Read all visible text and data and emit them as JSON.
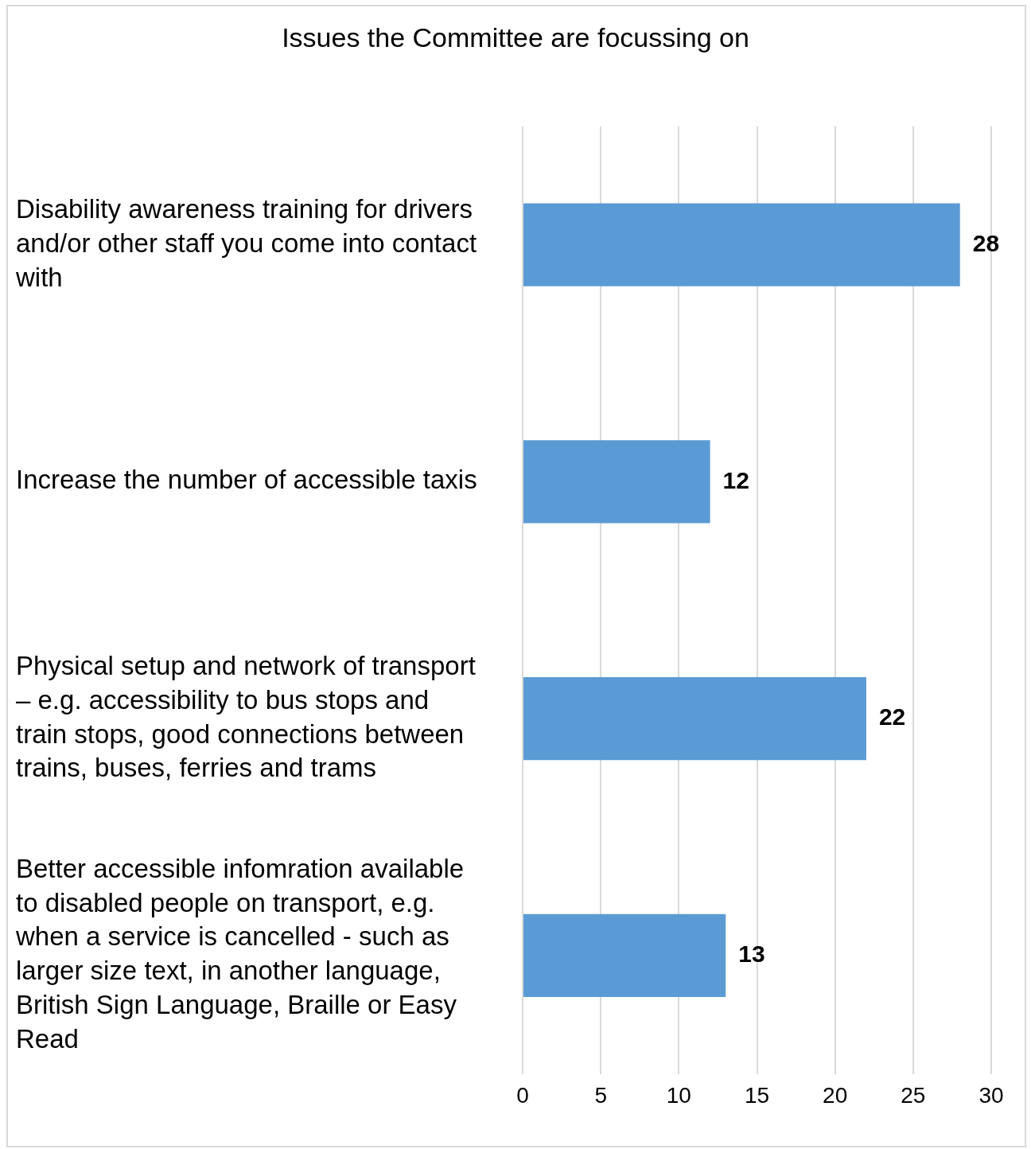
{
  "chart_data": {
    "type": "bar",
    "orientation": "horizontal",
    "title": "Issues the Committee are focussing on",
    "categories": [
      "Disability awareness training for drivers and/or other staff you come into contact with",
      "Increase the number of accessible taxis",
      "Physical setup and network of transport – e.g. accessibility to bus stops and train stops, good connections between trains, buses, ferries and trams",
      "Better accessible infomration available to disabled people on transport, e.g. when a service is cancelled - such as larger size text, in another language, British Sign Language, Braille or Easy Read"
    ],
    "values": [
      28,
      12,
      22,
      13
    ],
    "color": "#5b9bd5",
    "xlim": [
      0,
      30
    ],
    "xticks": [
      0,
      5,
      10,
      15,
      20,
      25,
      30
    ],
    "grid": "x",
    "data_labels": true,
    "legend": false
  }
}
